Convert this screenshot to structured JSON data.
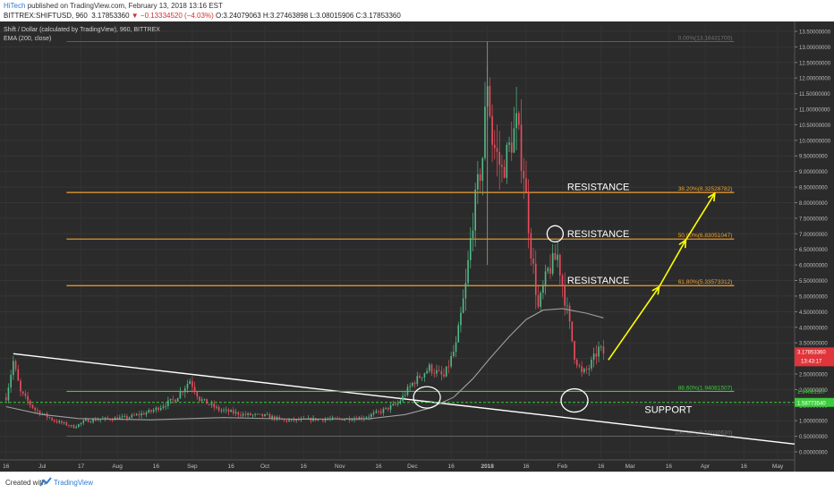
{
  "header": {
    "author": "HiTech",
    "published": "published on TradingView.com, February 13, 2018 13:16 EST",
    "symbol_line": "BITTREX:SHIFTUSD, 960",
    "last": "3.17853360",
    "change": "▼ −0.13334520 (−4.03%)",
    "ohlc": "O:3.24079063  H:3.27463898  L:3.08015906  C:3.17853360"
  },
  "legend": {
    "title": "Shift / Dollar (calculated by TradingView), 960, BITTREX",
    "ema": "EMA (200, close)"
  },
  "footer": {
    "created": "Created with",
    "brand": "TradingView"
  },
  "colors": {
    "background": "#2b2b2b",
    "up": "#53b987",
    "down": "#eb4d5c",
    "fib": "#f0a030",
    "support": "#3dcc3d",
    "ema": "#9e9e9e",
    "trendline": "#ffffff",
    "arrows": "#ffff00",
    "price_tag": "#e0353a"
  },
  "chart_data": {
    "type": "candlestick",
    "ylim": [
      -0.2,
      13.7
    ],
    "yticks": [
      {
        "v": 13.5,
        "l": "13.50000000"
      },
      {
        "v": 13.0,
        "l": "13.00000000"
      },
      {
        "v": 12.5,
        "l": "12.50000000"
      },
      {
        "v": 12.0,
        "l": "12.00000000"
      },
      {
        "v": 11.5,
        "l": "11.50000000"
      },
      {
        "v": 11.0,
        "l": "11.00000000"
      },
      {
        "v": 10.5,
        "l": "10.50000000"
      },
      {
        "v": 10.0,
        "l": "10.00000000"
      },
      {
        "v": 9.5,
        "l": "9.50000000"
      },
      {
        "v": 9.0,
        "l": "9.00000000"
      },
      {
        "v": 8.5,
        "l": "8.50000000"
      },
      {
        "v": 8.0,
        "l": "8.00000000"
      },
      {
        "v": 7.5,
        "l": "7.50000000"
      },
      {
        "v": 7.0,
        "l": "7.00000000"
      },
      {
        "v": 6.5,
        "l": "6.50000000"
      },
      {
        "v": 6.0,
        "l": "6.00000000"
      },
      {
        "v": 5.5,
        "l": "5.50000000"
      },
      {
        "v": 5.0,
        "l": "5.00000000"
      },
      {
        "v": 4.5,
        "l": "4.50000000"
      },
      {
        "v": 4.0,
        "l": "4.00000000"
      },
      {
        "v": 3.5,
        "l": "3.50000000"
      },
      {
        "v": 3.0,
        "l": "3.00000000"
      },
      {
        "v": 2.5,
        "l": "2.50000000"
      },
      {
        "v": 2.0,
        "l": "2.00000000"
      },
      {
        "v": 1.5,
        "l": "1.50000000"
      },
      {
        "v": 1.0,
        "l": "1.00000000"
      },
      {
        "v": 0.5,
        "l": "0.50000000"
      },
      {
        "v": 0.0,
        "l": "0.00000000"
      }
    ],
    "xticks": [
      {
        "t": 0,
        "l": "16"
      },
      {
        "t": 15,
        "l": "Jul"
      },
      {
        "t": 31,
        "l": "17"
      },
      {
        "t": 46,
        "l": "Aug"
      },
      {
        "t": 62,
        "l": "16"
      },
      {
        "t": 77,
        "l": "Sep"
      },
      {
        "t": 93,
        "l": "16"
      },
      {
        "t": 107,
        "l": "Oct"
      },
      {
        "t": 123,
        "l": "16"
      },
      {
        "t": 138,
        "l": "Nov"
      },
      {
        "t": 154,
        "l": "16"
      },
      {
        "t": 168,
        "l": "Dec"
      },
      {
        "t": 184,
        "l": "16"
      },
      {
        "t": 199,
        "l": "2018",
        "bold": true
      },
      {
        "t": 215,
        "l": "16"
      },
      {
        "t": 230,
        "l": "Feb"
      },
      {
        "t": 246,
        "l": "16"
      },
      {
        "t": 258,
        "l": "Mar"
      },
      {
        "t": 274,
        "l": "16"
      },
      {
        "t": 289,
        "l": "Apr"
      },
      {
        "t": 305,
        "l": "16"
      },
      {
        "t": 319,
        "l": "May"
      }
    ],
    "xlim": [
      -2.5,
      326
    ],
    "fib_levels": [
      {
        "price": 13.1643,
        "label": "0.00%(13.16431700)",
        "color": "#9e9e9e",
        "dim": true
      },
      {
        "price": 8.32528782,
        "label": "38.20%(8.32528782)",
        "color": "#f0a030"
      },
      {
        "price": 6.83051047,
        "label": "50.00%(6.83051047)",
        "color": "#f0a030"
      },
      {
        "price": 5.33573312,
        "label": "61.80%(5.33573312)",
        "color": "#f0a030"
      },
      {
        "price": 1.94081507,
        "label": "88.60%(1.94081507)",
        "color": "#3dcc3d"
      },
      {
        "price": 0.503,
        "label": "100.00%(0.50030630)",
        "color": "#9e9e9e",
        "dim": true
      }
    ],
    "support_price": 1.5877,
    "support_label": "1.58773540",
    "price_tag": "3.17853360",
    "countdown": "13:43:17",
    "trendline": [
      {
        "t": 3,
        "p": 3.15
      },
      {
        "t": 326,
        "p": 0.25
      }
    ],
    "annotations": [
      {
        "text": "RESISTANCE",
        "t": 232,
        "p": 8.4
      },
      {
        "text": "RESISTANCE",
        "t": 232,
        "p": 6.9
      },
      {
        "text": "RESISTANCE",
        "t": 232,
        "p": 5.4
      },
      {
        "text": "SUPPORT",
        "t": 264,
        "p": 1.25
      }
    ],
    "circles": [
      {
        "t": 174,
        "p": 1.75,
        "rx": 15,
        "ry": 12
      },
      {
        "t": 227,
        "p": 7.0,
        "rx": 9,
        "ry": 9
      },
      {
        "t": 235,
        "p": 1.65,
        "rx": 15,
        "ry": 13
      }
    ],
    "arrows": [
      {
        "from": {
          "t": 249,
          "p": 2.95
        },
        "to": {
          "t": 270,
          "p": 5.3
        }
      },
      {
        "from": {
          "t": 270,
          "p": 5.3
        },
        "to": {
          "t": 281,
          "p": 6.8
        }
      },
      {
        "from": {
          "t": 281,
          "p": 6.8
        },
        "to": {
          "t": 293,
          "p": 8.3
        }
      }
    ],
    "anchors": [
      {
        "t": 0,
        "p": 1.75
      },
      {
        "t": 3,
        "p": 2.9
      },
      {
        "t": 6,
        "p": 1.9
      },
      {
        "t": 12,
        "p": 1.35
      },
      {
        "t": 20,
        "p": 1.0
      },
      {
        "t": 28,
        "p": 0.8
      },
      {
        "t": 33,
        "p": 1.0
      },
      {
        "t": 40,
        "p": 1.05
      },
      {
        "t": 50,
        "p": 1.1
      },
      {
        "t": 60,
        "p": 1.3
      },
      {
        "t": 70,
        "p": 1.7
      },
      {
        "t": 76,
        "p": 2.3
      },
      {
        "t": 80,
        "p": 1.7
      },
      {
        "t": 88,
        "p": 1.35
      },
      {
        "t": 98,
        "p": 1.2
      },
      {
        "t": 108,
        "p": 1.15
      },
      {
        "t": 115,
        "p": 1.0
      },
      {
        "t": 128,
        "p": 1.05
      },
      {
        "t": 138,
        "p": 1.05
      },
      {
        "t": 148,
        "p": 1.1
      },
      {
        "t": 155,
        "p": 1.3
      },
      {
        "t": 162,
        "p": 1.55
      },
      {
        "t": 168,
        "p": 2.2
      },
      {
        "t": 175,
        "p": 2.7
      },
      {
        "t": 181,
        "p": 2.4
      },
      {
        "t": 186,
        "p": 3.4
      },
      {
        "t": 190,
        "p": 5.3
      },
      {
        "t": 193,
        "p": 7.5
      },
      {
        "t": 197,
        "p": 9.5
      },
      {
        "t": 199,
        "p": 12.0
      },
      {
        "t": 201,
        "p": 10.0
      },
      {
        "t": 205,
        "p": 9.0
      },
      {
        "t": 209,
        "p": 10.0
      },
      {
        "t": 211,
        "p": 10.5
      },
      {
        "t": 214,
        "p": 9.0
      },
      {
        "t": 217,
        "p": 6.5
      },
      {
        "t": 220,
        "p": 4.6
      },
      {
        "t": 224,
        "p": 5.8
      },
      {
        "t": 228,
        "p": 6.3
      },
      {
        "t": 232,
        "p": 4.5
      },
      {
        "t": 235,
        "p": 3.1
      },
      {
        "t": 238,
        "p": 2.5
      },
      {
        "t": 241,
        "p": 2.7
      },
      {
        "t": 245,
        "p": 3.3
      },
      {
        "t": 247,
        "p": 3.18
      }
    ],
    "ema": [
      {
        "t": 0,
        "p": 1.45
      },
      {
        "t": 15,
        "p": 1.2
      },
      {
        "t": 30,
        "p": 1.07
      },
      {
        "t": 60,
        "p": 1.03
      },
      {
        "t": 90,
        "p": 1.1
      },
      {
        "t": 120,
        "p": 1.05
      },
      {
        "t": 150,
        "p": 1.06
      },
      {
        "t": 165,
        "p": 1.2
      },
      {
        "t": 175,
        "p": 1.4
      },
      {
        "t": 185,
        "p": 1.75
      },
      {
        "t": 193,
        "p": 2.35
      },
      {
        "t": 200,
        "p": 3.0
      },
      {
        "t": 208,
        "p": 3.7
      },
      {
        "t": 215,
        "p": 4.25
      },
      {
        "t": 222,
        "p": 4.55
      },
      {
        "t": 230,
        "p": 4.6
      },
      {
        "t": 240,
        "p": 4.45
      },
      {
        "t": 247,
        "p": 4.3
      }
    ]
  }
}
